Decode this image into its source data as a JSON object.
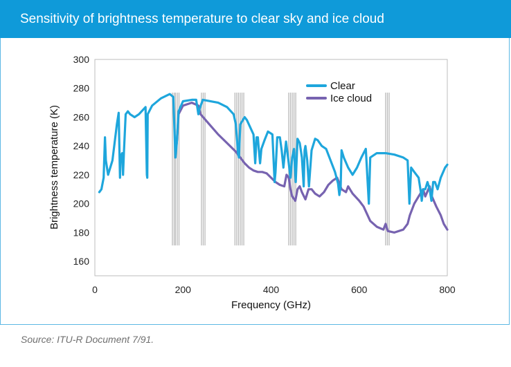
{
  "header": {
    "title": "Sensitivity of brightness temperature to clear sky and ice cloud"
  },
  "footer": {
    "source": "Source: ITU-R Document 7/91."
  },
  "colors": {
    "clear": "#1ea6dc",
    "ice": "#7763b0",
    "bands": "#b9b9b9",
    "title_bg": "#0f9ad9"
  },
  "chart_data": {
    "type": "line",
    "title": "Sensitivity of brightness temperature to clear sky and ice cloud",
    "xlabel": "Frequency (GHz)",
    "ylabel": "Brightness temperature (K)",
    "xlim": [
      0,
      800
    ],
    "ylim": [
      150,
      300
    ],
    "xticks": [
      0,
      200,
      400,
      600,
      800
    ],
    "yticks": [
      160,
      180,
      200,
      220,
      240,
      260,
      280,
      300
    ],
    "legend_position": "top-right",
    "band_lines": [
      176,
      180,
      183,
      187,
      191,
      242,
      246,
      250,
      318,
      322,
      326,
      330,
      334,
      338,
      440,
      444,
      448,
      452,
      456,
      660,
      664,
      668
    ],
    "series": [
      {
        "name": "Clear",
        "points": [
          [
            10,
            208
          ],
          [
            15,
            210
          ],
          [
            20,
            218
          ],
          [
            23,
            246
          ],
          [
            25,
            230
          ],
          [
            30,
            220
          ],
          [
            40,
            230
          ],
          [
            50,
            255
          ],
          [
            54,
            263
          ],
          [
            57,
            218
          ],
          [
            58,
            232
          ],
          [
            62,
            235
          ],
          [
            64,
            220
          ],
          [
            66,
            236
          ],
          [
            70,
            262
          ],
          [
            75,
            264
          ],
          [
            80,
            262
          ],
          [
            90,
            260
          ],
          [
            100,
            262
          ],
          [
            115,
            267
          ],
          [
            118,
            220
          ],
          [
            119,
            218
          ],
          [
            120,
            262
          ],
          [
            130,
            268
          ],
          [
            150,
            273
          ],
          [
            170,
            276
          ],
          [
            178,
            274
          ],
          [
            183,
            232
          ],
          [
            186,
            242
          ],
          [
            190,
            264
          ],
          [
            200,
            271
          ],
          [
            220,
            272
          ],
          [
            230,
            272
          ],
          [
            235,
            262
          ],
          [
            238,
            266
          ],
          [
            245,
            272
          ],
          [
            280,
            270
          ],
          [
            300,
            267
          ],
          [
            315,
            262
          ],
          [
            320,
            255
          ],
          [
            325,
            235
          ],
          [
            327,
            232
          ],
          [
            330,
            255
          ],
          [
            340,
            260
          ],
          [
            345,
            258
          ],
          [
            360,
            248
          ],
          [
            364,
            228
          ],
          [
            367,
            246
          ],
          [
            370,
            246
          ],
          [
            372,
            238
          ],
          [
            375,
            228
          ],
          [
            378,
            238
          ],
          [
            385,
            244
          ],
          [
            393,
            250
          ],
          [
            403,
            248
          ],
          [
            408,
            215
          ],
          [
            410,
            222
          ],
          [
            414,
            246
          ],
          [
            420,
            246
          ],
          [
            424,
            237
          ],
          [
            428,
            225
          ],
          [
            434,
            243
          ],
          [
            440,
            228
          ],
          [
            444,
            218
          ],
          [
            448,
            232
          ],
          [
            452,
            238
          ],
          [
            456,
            215
          ],
          [
            460,
            245
          ],
          [
            465,
            242
          ],
          [
            470,
            232
          ],
          [
            474,
            212
          ],
          [
            476,
            237
          ],
          [
            478,
            240
          ],
          [
            482,
            230
          ],
          [
            486,
            212
          ],
          [
            492,
            237
          ],
          [
            500,
            245
          ],
          [
            506,
            244
          ],
          [
            515,
            240
          ],
          [
            525,
            238
          ],
          [
            535,
            230
          ],
          [
            545,
            222
          ],
          [
            552,
            214
          ],
          [
            555,
            206
          ],
          [
            558,
            212
          ],
          [
            560,
            237
          ],
          [
            565,
            232
          ],
          [
            575,
            225
          ],
          [
            585,
            220
          ],
          [
            595,
            225
          ],
          [
            605,
            232
          ],
          [
            615,
            238
          ],
          [
            622,
            200
          ],
          [
            625,
            232
          ],
          [
            640,
            235
          ],
          [
            660,
            235
          ],
          [
            680,
            234
          ],
          [
            700,
            232
          ],
          [
            710,
            230
          ],
          [
            714,
            200
          ],
          [
            718,
            225
          ],
          [
            725,
            222
          ],
          [
            735,
            218
          ],
          [
            740,
            208
          ],
          [
            742,
            202
          ],
          [
            745,
            210
          ],
          [
            750,
            210
          ],
          [
            755,
            215
          ],
          [
            760,
            210
          ],
          [
            764,
            202
          ],
          [
            768,
            215
          ],
          [
            772,
            215
          ],
          [
            778,
            210
          ],
          [
            785,
            218
          ],
          [
            795,
            225
          ],
          [
            800,
            227
          ]
        ]
      },
      {
        "name": "Ice cloud",
        "points": [
          [
            183,
            238
          ],
          [
            186,
            242
          ],
          [
            190,
            262
          ],
          [
            200,
            268
          ],
          [
            220,
            270
          ],
          [
            235,
            268
          ],
          [
            240,
            262
          ],
          [
            260,
            255
          ],
          [
            280,
            248
          ],
          [
            300,
            242
          ],
          [
            320,
            236
          ],
          [
            330,
            232
          ],
          [
            340,
            228
          ],
          [
            350,
            225
          ],
          [
            360,
            223
          ],
          [
            370,
            222
          ],
          [
            380,
            222
          ],
          [
            390,
            221
          ],
          [
            400,
            218
          ],
          [
            410,
            215
          ],
          [
            420,
            213
          ],
          [
            430,
            212
          ],
          [
            435,
            220
          ],
          [
            440,
            218
          ],
          [
            444,
            210
          ],
          [
            448,
            205
          ],
          [
            455,
            202
          ],
          [
            460,
            210
          ],
          [
            465,
            212
          ],
          [
            470,
            208
          ],
          [
            478,
            203
          ],
          [
            485,
            210
          ],
          [
            492,
            210
          ],
          [
            500,
            207
          ],
          [
            510,
            205
          ],
          [
            520,
            208
          ],
          [
            530,
            213
          ],
          [
            540,
            216
          ],
          [
            550,
            218
          ],
          [
            560,
            210
          ],
          [
            570,
            208
          ],
          [
            575,
            212
          ],
          [
            585,
            207
          ],
          [
            600,
            202
          ],
          [
            610,
            198
          ],
          [
            625,
            188
          ],
          [
            640,
            184
          ],
          [
            655,
            182
          ],
          [
            660,
            186
          ],
          [
            665,
            181
          ],
          [
            680,
            180
          ],
          [
            700,
            182
          ],
          [
            710,
            186
          ],
          [
            715,
            192
          ],
          [
            725,
            200
          ],
          [
            735,
            205
          ],
          [
            745,
            210
          ],
          [
            750,
            205
          ],
          [
            760,
            212
          ],
          [
            765,
            205
          ],
          [
            775,
            198
          ],
          [
            785,
            192
          ],
          [
            792,
            186
          ],
          [
            800,
            182
          ]
        ]
      }
    ]
  }
}
